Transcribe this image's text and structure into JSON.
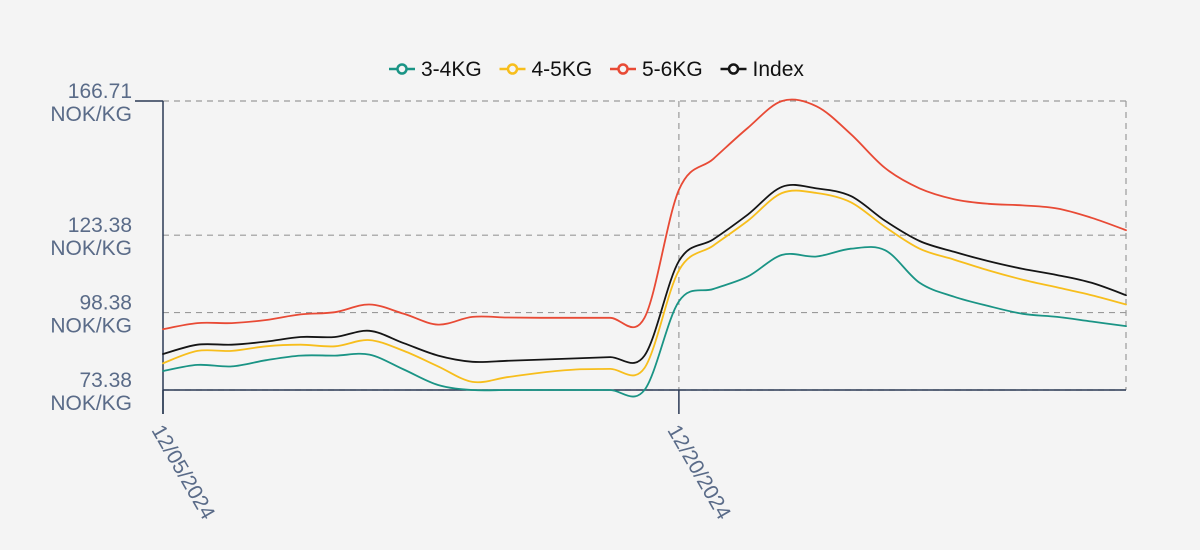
{
  "chart_data": {
    "type": "line",
    "xlabel": "",
    "ylabel": "",
    "x_ticks": [
      "12/05/2024",
      "12/20/2024"
    ],
    "x_range": [
      "12/05/2024",
      "01/02/2025"
    ],
    "y_ticks": [
      {
        "value": 166.71,
        "label": "166.71",
        "unit": "NOK/KG"
      },
      {
        "value": 123.38,
        "label": "123.38",
        "unit": "NOK/KG"
      },
      {
        "value": 98.38,
        "label": "98.38",
        "unit": "NOK/KG"
      },
      {
        "value": 73.38,
        "label": "73.38",
        "unit": "NOK/KG"
      }
    ],
    "ylim": [
      73.38,
      166.71
    ],
    "grid": true,
    "legend_position": "top-center",
    "x": [
      "12/05/2024",
      "12/06/2024",
      "12/07/2024",
      "12/08/2024",
      "12/09/2024",
      "12/10/2024",
      "12/11/2024",
      "12/12/2024",
      "12/13/2024",
      "12/14/2024",
      "12/15/2024",
      "12/16/2024",
      "12/17/2024",
      "12/18/2024",
      "12/19/2024",
      "12/20/2024",
      "12/21/2024",
      "12/22/2024",
      "12/23/2024",
      "12/24/2024",
      "12/25/2024",
      "12/26/2024",
      "12/27/2024",
      "12/28/2024",
      "12/29/2024",
      "12/30/2024",
      "12/31/2024",
      "01/01/2025",
      "01/02/2025"
    ],
    "series": [
      {
        "name": "3-4KG",
        "color": "#1a9485",
        "values": [
          79.5,
          81.5,
          81,
          83,
          84.5,
          84.5,
          84.8,
          80,
          75,
          73.38,
          73.38,
          73.38,
          73.38,
          73.38,
          73.38,
          102,
          106,
          110,
          117,
          116.5,
          119,
          118.5,
          108,
          103.5,
          100.5,
          98,
          97,
          95.5,
          94
        ]
      },
      {
        "name": "4-5KG",
        "color": "#f7be1c",
        "values": [
          82,
          86,
          86,
          87.5,
          88,
          87.5,
          89.5,
          86,
          81,
          76,
          77.5,
          79,
          80,
          80.2,
          80.5,
          112,
          120,
          128,
          137,
          137,
          134,
          126,
          119,
          115.5,
          112,
          109,
          106.5,
          104,
          101
        ]
      },
      {
        "name": "5-6KG",
        "color": "#e84a35",
        "values": [
          93,
          95,
          95,
          96,
          97.8,
          98.5,
          101,
          98,
          94.5,
          97,
          96.8,
          96.7,
          96.7,
          96.7,
          96.7,
          138,
          148,
          158,
          166.71,
          165,
          156,
          145,
          138.5,
          135,
          133.5,
          133,
          132,
          129,
          125
        ]
      },
      {
        "name": "Index",
        "color": "#151515",
        "values": [
          85,
          88,
          88,
          89,
          90.5,
          90.5,
          92.5,
          88.5,
          84.5,
          82.5,
          82.8,
          83.2,
          83.6,
          84,
          84.5,
          115,
          122,
          130,
          139,
          138.5,
          136,
          128,
          121.5,
          118,
          115,
          112.5,
          110.5,
          108,
          104
        ]
      }
    ]
  }
}
